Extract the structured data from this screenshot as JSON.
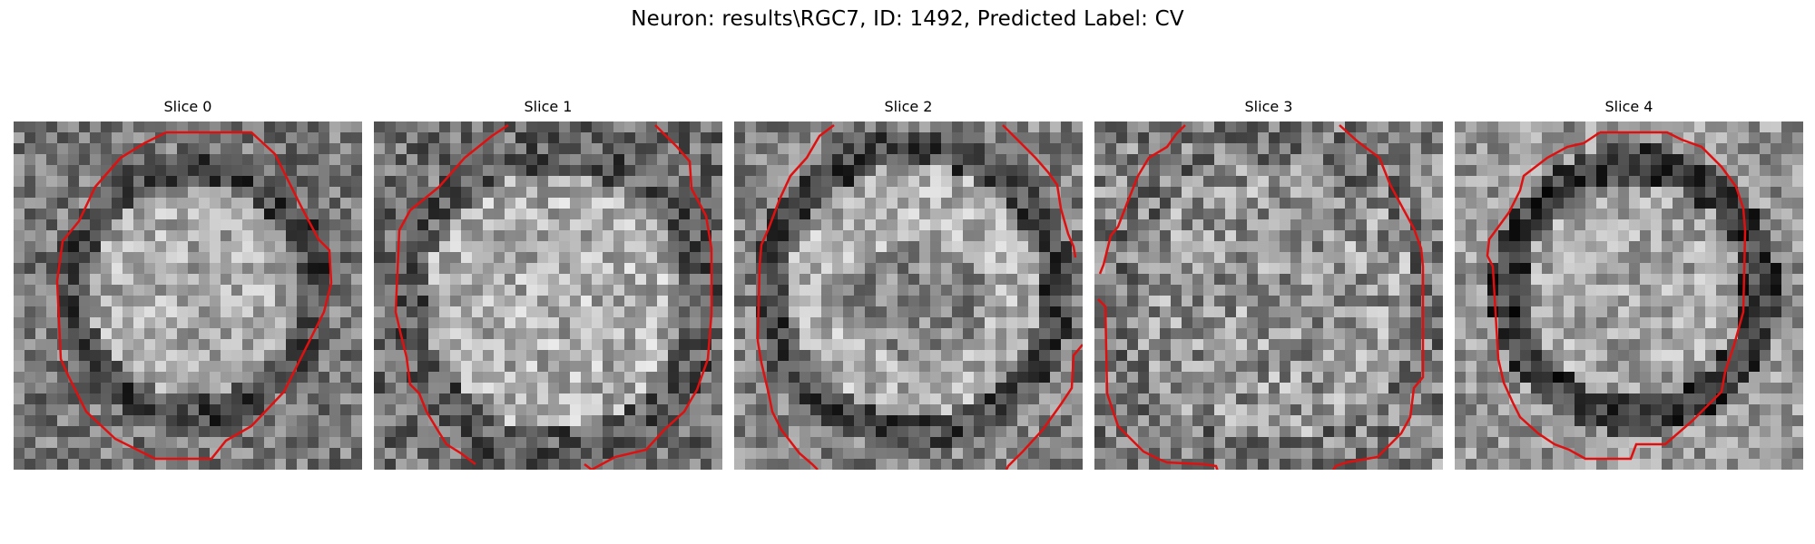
{
  "figure": {
    "title": "Neuron: results\\RGC7, ID: 1492, Predicted Label: CV",
    "colormap": "gray",
    "contour_color": "#e01010",
    "grid_size": 32
  },
  "panels": [
    {
      "title": "Slice 0"
    },
    {
      "title": "Slice 1"
    },
    {
      "title": "Slice 2"
    },
    {
      "title": "Slice 3"
    },
    {
      "title": "Slice 4"
    }
  ]
}
